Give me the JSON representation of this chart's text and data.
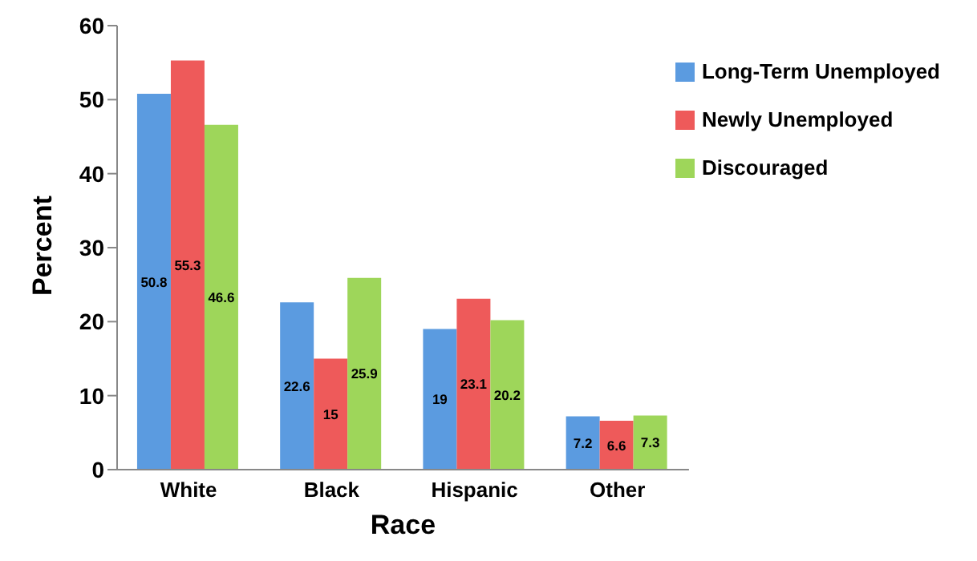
{
  "chart_data": {
    "type": "bar",
    "xlabel": "Race",
    "ylabel": "Percent",
    "categories": [
      "White",
      "Black",
      "Hispanic",
      "Other"
    ],
    "series": [
      {
        "name": "Long-Term Unemployed",
        "color": "#5b9be0",
        "values": [
          50.8,
          22.6,
          19,
          7.2
        ]
      },
      {
        "name": "Newly Unemployed",
        "color": "#ee5a5a",
        "values": [
          55.3,
          15,
          23.1,
          6.6
        ]
      },
      {
        "name": "Discouraged",
        "color": "#9ed65a",
        "values": [
          46.6,
          25.9,
          20.2,
          7.3
        ]
      }
    ],
    "ylim": [
      0,
      60
    ],
    "yticks": [
      0,
      10,
      20,
      30,
      40,
      50,
      60
    ],
    "data_labels": true,
    "legend": "top right",
    "grid": false
  }
}
